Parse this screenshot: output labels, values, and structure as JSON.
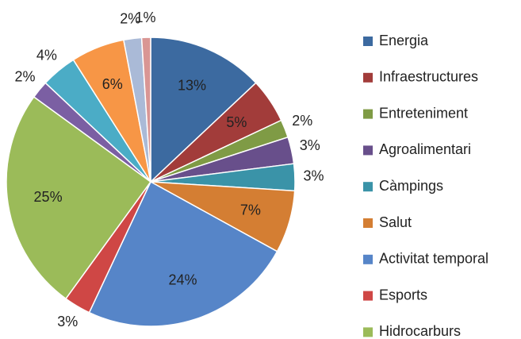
{
  "chart_data": {
    "type": "pie",
    "categories": [
      "Energia",
      "Infraestructures",
      "Entreteniment",
      "Agroalimentari",
      "Càmpings",
      "Salut",
      "Activitat temporal",
      "Esports",
      "Hidrocarburs",
      null,
      null,
      null,
      null,
      null
    ],
    "values": [
      13,
      5,
      2,
      3,
      3,
      7,
      24,
      3,
      25,
      2,
      4,
      6,
      2,
      1
    ],
    "value_labels": [
      "13%",
      "5%",
      "2%",
      "3%",
      "3%",
      "7%",
      "24%",
      "3%",
      "25%",
      "2%",
      "4%",
      "6%",
      "2%",
      "1%"
    ],
    "colors": [
      "#3c6aa0",
      "#a23c3a",
      "#7f9b45",
      "#684f8b",
      "#3a93a8",
      "#d47e33",
      "#5685c8",
      "#cf4745",
      "#9bbb59",
      "#7b5fa3",
      "#4bacc6",
      "#f79646",
      "#aabad7",
      "#d99694"
    ],
    "legend": "right"
  }
}
